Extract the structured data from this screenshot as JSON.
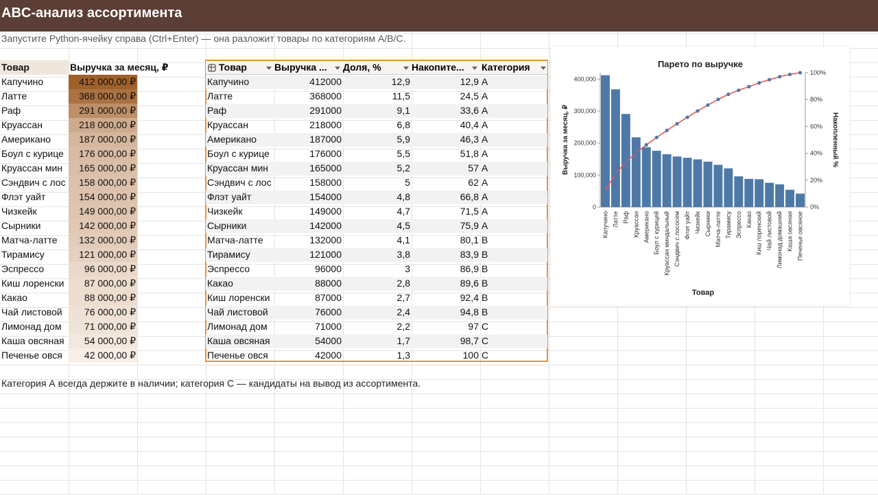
{
  "title": "ABC-анализ ассортимента",
  "subtitle": "Запустите Python-ячейку справа (Ctrl+Enter) — она разложит товары по категориям A/B/C.",
  "note": "Категория А всегда держите в наличии; категория С — кандидаты на вывод из ассортимента.",
  "source": {
    "headers": [
      "Товар",
      "Выручка за месяц, ₽"
    ],
    "rows": [
      [
        "Капучино",
        "412 000,00 ₽"
      ],
      [
        "Латте",
        "368 000,00 ₽"
      ],
      [
        "Раф",
        "291 000,00 ₽"
      ],
      [
        "Круассан",
        "218 000,00 ₽"
      ],
      [
        "Американо",
        "187 000,00 ₽"
      ],
      [
        "Боул с курице",
        "176 000,00 ₽"
      ],
      [
        "Круассан мин",
        "165 000,00 ₽"
      ],
      [
        "Сэндвич с лос",
        "158 000,00 ₽"
      ],
      [
        "Флэт уайт",
        "154 000,00 ₽"
      ],
      [
        "Чизкейк",
        "149 000,00 ₽"
      ],
      [
        "Сырники",
        "142 000,00 ₽"
      ],
      [
        "Матча-латте",
        "132 000,00 ₽"
      ],
      [
        "Тирамису",
        "121 000,00 ₽"
      ],
      [
        "Эспрессо",
        "96 000,00 ₽"
      ],
      [
        "Киш лоренски",
        "87 000,00 ₽"
      ],
      [
        "Какао",
        "88 000,00 ₽"
      ],
      [
        "Чай листовой",
        "76 000,00 ₽"
      ],
      [
        "Лимонад дом",
        "71 000,00 ₽"
      ],
      [
        "Каша овсяная",
        "54 000,00 ₽"
      ],
      [
        "Печенье овся",
        "42 000,00 ₽"
      ]
    ],
    "heat_levels": [
      1.0,
      0.88,
      0.67,
      0.47,
      0.39,
      0.36,
      0.33,
      0.31,
      0.3,
      0.29,
      0.27,
      0.24,
      0.21,
      0.15,
      0.12,
      0.12,
      0.09,
      0.08,
      0.04,
      0.0
    ]
  },
  "result": {
    "headers": [
      "Товар",
      "Выручка ...",
      "Доля, %",
      "Накопите...",
      "Категория"
    ],
    "rows": [
      [
        "Капучино",
        "412000",
        "12,9",
        "12,9",
        "A"
      ],
      [
        "Латте",
        "368000",
        "11,5",
        "24,5",
        "A"
      ],
      [
        "Раф",
        "291000",
        "9,1",
        "33,6",
        "A"
      ],
      [
        "Круассан",
        "218000",
        "6,8",
        "40,4",
        "A"
      ],
      [
        "Американо",
        "187000",
        "5,9",
        "46,3",
        "A"
      ],
      [
        "Боул с курице",
        "176000",
        "5,5",
        "51,8",
        "A"
      ],
      [
        "Круассан мин",
        "165000",
        "5,2",
        "57",
        "A"
      ],
      [
        "Сэндвич с лос",
        "158000",
        "5",
        "62",
        "A"
      ],
      [
        "Флэт уайт",
        "154000",
        "4,8",
        "66,8",
        "A"
      ],
      [
        "Чизкейк",
        "149000",
        "4,7",
        "71,5",
        "A"
      ],
      [
        "Сырники",
        "142000",
        "4,5",
        "75,9",
        "A"
      ],
      [
        "Матча-латте",
        "132000",
        "4,1",
        "80,1",
        "B"
      ],
      [
        "Тирамису",
        "121000",
        "3,8",
        "83,9",
        "B"
      ],
      [
        "Эспрессо",
        "96000",
        "3",
        "86,9",
        "B"
      ],
      [
        "Какао",
        "88000",
        "2,8",
        "89,6",
        "B"
      ],
      [
        "Киш лоренски",
        "87000",
        "2,7",
        "92,4",
        "B"
      ],
      [
        "Чай листовой",
        "76000",
        "2,4",
        "94,8",
        "B"
      ],
      [
        "Лимонад дом",
        "71000",
        "2,2",
        "97",
        "C"
      ],
      [
        "Каша овсяная",
        "54000",
        "1,7",
        "98,7",
        "C"
      ],
      [
        "Печенье овся",
        "42000",
        "1,3",
        "100",
        "C"
      ]
    ]
  },
  "chart_data": {
    "type": "bar",
    "title": "Парето по выручке",
    "xlabel": "Товар",
    "ylabel": "Выручка за месяц, ₽",
    "y2label": "Накопленный %",
    "categories": [
      "Капучино",
      "Латте",
      "Раф",
      "Круассан",
      "Американо",
      "Боул с курицей",
      "Круассан миндальный",
      "Сэндвич с лососем",
      "Флэт уайт",
      "Чизкейк",
      "Сырники",
      "Матча-латте",
      "Тирамису",
      "Эспрессо",
      "Какао",
      "Киш лоренский",
      "Чай листовой",
      "Лимонад домашний",
      "Каша овсяная",
      "Печенье овсяное"
    ],
    "values": [
      412000,
      368000,
      291000,
      218000,
      187000,
      176000,
      165000,
      158000,
      154000,
      149000,
      142000,
      132000,
      121000,
      96000,
      88000,
      87000,
      76000,
      71000,
      54000,
      42000
    ],
    "cumulative": [
      12.9,
      24.5,
      33.6,
      40.4,
      46.3,
      51.8,
      57,
      62,
      66.8,
      71.5,
      75.9,
      80.1,
      83.9,
      86.9,
      89.6,
      92.4,
      94.8,
      97,
      98.7,
      100
    ],
    "ylim": [
      0,
      400000
    ],
    "y2lim": [
      0,
      100
    ],
    "yticks": [
      "0",
      "100,000",
      "200,000",
      "300,000",
      "400,000"
    ],
    "y2ticks": [
      "0%",
      "20%",
      "40%",
      "60%",
      "80%",
      "100%"
    ],
    "bar_color": "#4e79a7",
    "line_color": "#e15759",
    "marker_color": "#4e79a7"
  },
  "colors": {
    "header_bg": "#5b3e36",
    "heat_low": "#f7eee6",
    "heat_high": "#a0602a",
    "table_border": "#e8903a",
    "table_band": "#f2f2f2"
  }
}
